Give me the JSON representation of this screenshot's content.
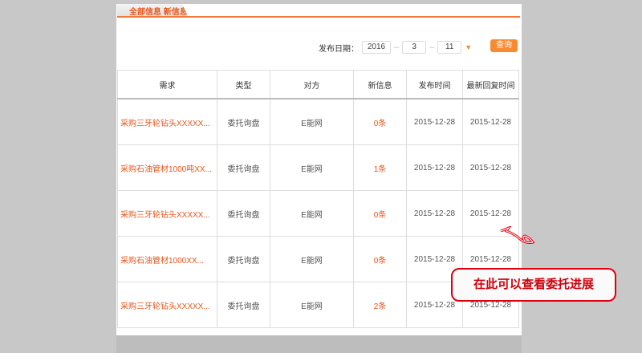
{
  "tab": {
    "label": "全部信息 新信息"
  },
  "filter": {
    "label": "发布日期：",
    "year": "2016",
    "month": "3",
    "day": "11",
    "separator": "–"
  },
  "query_label": "查询",
  "table": {
    "headers": [
      "需求",
      "类型",
      "对方",
      "新信息",
      "发布时间",
      "最新回复时间"
    ],
    "rows": [
      [
        "采购三牙轮钻头XXXXX...",
        "委托询盘",
        "E能网",
        "0条",
        "2015-12-28",
        "2015-12-28"
      ],
      [
        "采购石油管材1000吨XX...",
        "委托询盘",
        "E能网",
        "1条",
        "2015-12-28",
        "2015-12-28"
      ],
      [
        "采购三牙轮钻头XXXXX...",
        "委托询盘",
        "E能网",
        "0条",
        "2015-12-28",
        "2015-12-28"
      ],
      [
        "采购石油管材1000XX...",
        "委托询盘",
        "E能网",
        "0条",
        "2015-12-28",
        "2015-12-28"
      ],
      [
        "采购三牙轮钻头XXXXX...",
        "委托询盘",
        "E能网",
        "2条",
        "2015-12-28",
        "2015-12-28"
      ]
    ]
  },
  "callout": {
    "text": "在此可以查看委托进展",
    "color": "#e00010"
  },
  "colors": {
    "accent": "#e8561c",
    "button": "#f78b32",
    "background": "#c8c8c8"
  }
}
